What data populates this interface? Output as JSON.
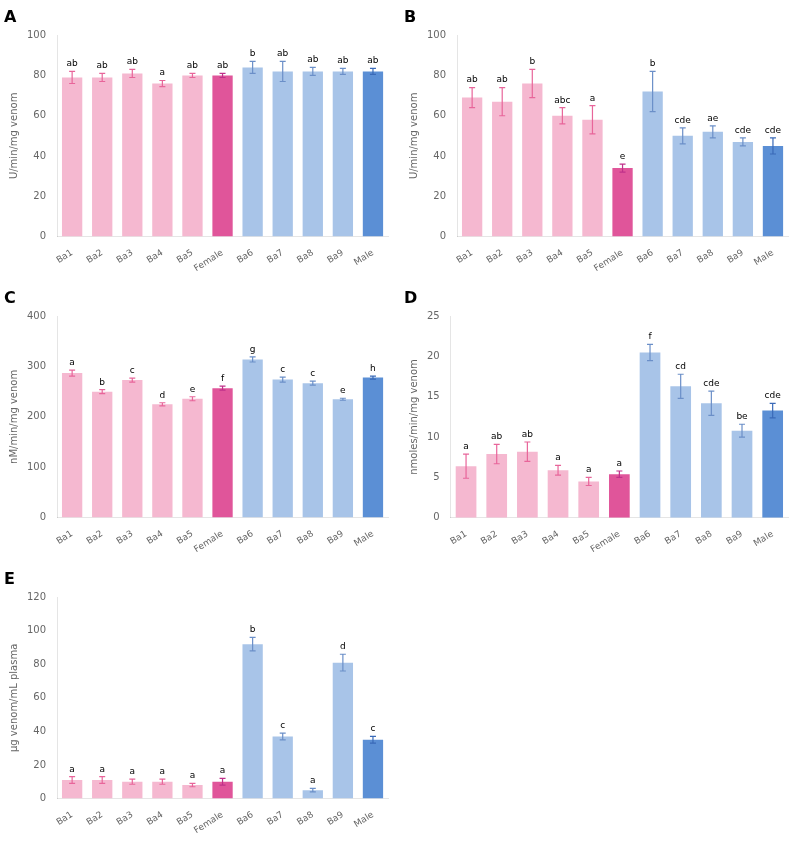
{
  "chart_data": [
    {
      "type": "bar",
      "title": "A",
      "categories": [
        "Ba1",
        "Ba2",
        "Ba3",
        "Ba4",
        "Ba5",
        "Female",
        "Ba6",
        "Ba7",
        "Ba8",
        "Ba9",
        "Male"
      ],
      "values": [
        79,
        79,
        81,
        76,
        80,
        80,
        84,
        82,
        82,
        82,
        82
      ],
      "errors": [
        3,
        2,
        2,
        1.5,
        1,
        1,
        3,
        5,
        2,
        1.5,
        1.5
      ],
      "colors": [
        "#F5B8D0",
        "#F5B8D0",
        "#F5B8D0",
        "#F5B8D0",
        "#F5B8D0",
        "#E0559A",
        "#A8C4E8",
        "#A8C4E8",
        "#A8C4E8",
        "#A8C4E8",
        "#5B8FD5"
      ],
      "error_colors": [
        "#E8659A",
        "#E8659A",
        "#E8659A",
        "#E8659A",
        "#E8659A",
        "#C0308A",
        "#6B8FC8",
        "#6B8FC8",
        "#6B8FC8",
        "#6B8FC8",
        "#3A6AB8"
      ],
      "annotations": [
        "ab",
        "ab",
        "ab",
        "a",
        "ab",
        "ab",
        "b",
        "ab",
        "ab",
        "ab",
        "ab"
      ],
      "ylabel": "U/min/mg venom",
      "ylim": [
        0,
        100
      ],
      "yticks": [
        0,
        20,
        40,
        60,
        80,
        100
      ],
      "grid": false
    },
    {
      "type": "bar",
      "title": "B",
      "categories": [
        "Ba1",
        "Ba2",
        "Ba3",
        "Ba4",
        "Ba5",
        "Female",
        "Ba6",
        "Ba7",
        "Ba8",
        "Ba9",
        "Male"
      ],
      "values": [
        69,
        67,
        76,
        60,
        58,
        34,
        72,
        50,
        52,
        47,
        45
      ],
      "errors": [
        5,
        7,
        7,
        4,
        7,
        2,
        10,
        4,
        3,
        2,
        4
      ],
      "colors": [
        "#F5B8D0",
        "#F5B8D0",
        "#F5B8D0",
        "#F5B8D0",
        "#F5B8D0",
        "#E0559A",
        "#A8C4E8",
        "#A8C4E8",
        "#A8C4E8",
        "#A8C4E8",
        "#5B8FD5"
      ],
      "error_colors": [
        "#E8659A",
        "#E8659A",
        "#E8659A",
        "#E8659A",
        "#E8659A",
        "#C0308A",
        "#6B8FC8",
        "#6B8FC8",
        "#6B8FC8",
        "#6B8FC8",
        "#3A6AB8"
      ],
      "annotations": [
        "ab",
        "ab",
        "b",
        "abc",
        "a",
        "e",
        "b",
        "cde",
        "ae",
        "cde",
        "cde"
      ],
      "ylabel": "U/min/mg venom",
      "ylim": [
        0,
        100
      ],
      "yticks": [
        0,
        20,
        40,
        60,
        80,
        100
      ],
      "grid": false
    },
    {
      "type": "bar",
      "title": "C",
      "categories": [
        "Ba1",
        "Ba2",
        "Ba3",
        "Ba4",
        "Ba5",
        "Female",
        "Ba6",
        "Ba7",
        "Ba8",
        "Ba9",
        "Male"
      ],
      "values": [
        287,
        250,
        273,
        225,
        236,
        257,
        314,
        274,
        267,
        235,
        278
      ],
      "errors": [
        6,
        4,
        4,
        3,
        4,
        4,
        5,
        5,
        4,
        2,
        3
      ],
      "colors": [
        "#F5B8D0",
        "#F5B8D0",
        "#F5B8D0",
        "#F5B8D0",
        "#F5B8D0",
        "#E0559A",
        "#A8C4E8",
        "#A8C4E8",
        "#A8C4E8",
        "#A8C4E8",
        "#5B8FD5"
      ],
      "error_colors": [
        "#E8659A",
        "#E8659A",
        "#E8659A",
        "#E8659A",
        "#E8659A",
        "#C0308A",
        "#6B8FC8",
        "#6B8FC8",
        "#6B8FC8",
        "#6B8FC8",
        "#3A6AB8"
      ],
      "annotations": [
        "a",
        "b",
        "c",
        "d",
        "e",
        "f",
        "g",
        "c",
        "c",
        "e",
        "h"
      ],
      "ylabel": "nM/min/mg venom",
      "ylim": [
        0,
        400
      ],
      "yticks": [
        0,
        100,
        200,
        300,
        400
      ],
      "grid": false
    },
    {
      "type": "bar",
      "title": "D",
      "categories": [
        "Ba1",
        "Ba2",
        "Ba3",
        "Ba4",
        "Ba5",
        "Female",
        "Ba6",
        "Ba7",
        "Ba8",
        "Ba9",
        "Male"
      ],
      "values": [
        6.4,
        7.9,
        8.2,
        5.9,
        4.5,
        5.4,
        20.5,
        16.3,
        14.2,
        10.8,
        13.3
      ],
      "errors": [
        1.5,
        1.2,
        1.2,
        0.6,
        0.5,
        0.4,
        1.0,
        1.5,
        1.5,
        0.8,
        0.9
      ],
      "colors": [
        "#F5B8D0",
        "#F5B8D0",
        "#F5B8D0",
        "#F5B8D0",
        "#F5B8D0",
        "#E0559A",
        "#A8C4E8",
        "#A8C4E8",
        "#A8C4E8",
        "#A8C4E8",
        "#5B8FD5"
      ],
      "error_colors": [
        "#E8659A",
        "#E8659A",
        "#E8659A",
        "#E8659A",
        "#E8659A",
        "#C0308A",
        "#6B8FC8",
        "#6B8FC8",
        "#6B8FC8",
        "#6B8FC8",
        "#3A6AB8"
      ],
      "annotations": [
        "a",
        "ab",
        "ab",
        "a",
        "a",
        "a",
        "f",
        "cd",
        "cde",
        "be",
        "cde"
      ],
      "ylabel": "nmoles/min/mg venom",
      "ylim": [
        0,
        25
      ],
      "yticks": [
        0,
        5,
        10,
        15,
        20,
        25
      ],
      "grid": false
    },
    {
      "type": "bar",
      "title": "E",
      "categories": [
        "Ba1",
        "Ba2",
        "Ba3",
        "Ba4",
        "Ba5",
        "Female",
        "Ba6",
        "Ba7",
        "Ba8",
        "Ba9",
        "Male"
      ],
      "values": [
        11,
        11,
        10,
        10,
        8,
        10,
        92,
        37,
        5,
        81,
        35
      ],
      "errors": [
        2,
        2,
        1.5,
        1.5,
        1,
        2,
        4,
        2,
        1,
        5,
        2
      ],
      "colors": [
        "#F5B8D0",
        "#F5B8D0",
        "#F5B8D0",
        "#F5B8D0",
        "#F5B8D0",
        "#E0559A",
        "#A8C4E8",
        "#A8C4E8",
        "#A8C4E8",
        "#A8C4E8",
        "#5B8FD5"
      ],
      "error_colors": [
        "#E8659A",
        "#E8659A",
        "#E8659A",
        "#E8659A",
        "#E8659A",
        "#C0308A",
        "#6B8FC8",
        "#6B8FC8",
        "#6B8FC8",
        "#6B8FC8",
        "#3A6AB8"
      ],
      "annotations": [
        "a",
        "a",
        "a",
        "a",
        "a",
        "a",
        "b",
        "c",
        "a",
        "d",
        "c"
      ],
      "ylabel": "μg venom/mL plasma",
      "ylim": [
        0,
        120
      ],
      "yticks": [
        0,
        20,
        40,
        60,
        80,
        100,
        120
      ],
      "grid": false
    }
  ]
}
